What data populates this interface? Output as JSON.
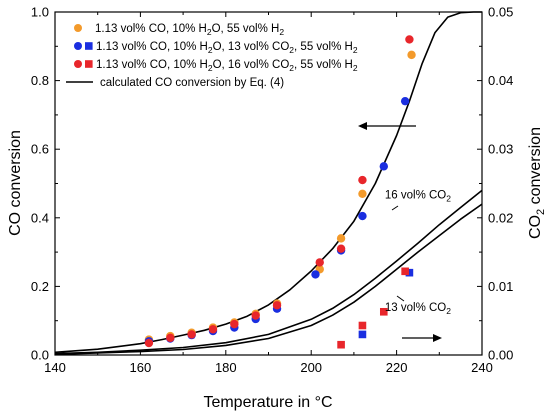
{
  "chart_data": {
    "type": "scatter",
    "xlabel": "Temperature in °C",
    "ylabel_left": "CO conversion",
    "ylabel_right_base": "CO",
    "ylabel_right_sub": "2",
    "ylabel_right_tail": " conversion",
    "xlim": [
      140,
      240
    ],
    "ylim_left": [
      0,
      1.0
    ],
    "ylim_right": [
      0,
      0.05
    ],
    "x_ticks": [
      "140",
      "160",
      "180",
      "200",
      "220",
      "240"
    ],
    "y_left_ticks": [
      "0.0",
      "0.2",
      "0.4",
      "0.6",
      "0.8",
      "1.0"
    ],
    "y_right_ticks": [
      "0.00",
      "0.01",
      "0.02",
      "0.03",
      "0.04",
      "0.05"
    ],
    "grid": false,
    "legend_position": "top-left",
    "legend": [
      {
        "marker": "circle",
        "color": "#f39a2b",
        "parts": [
          [
            "1.13 vol% CO, 10% H",
            ""
          ],
          [
            "2",
            "sub"
          ],
          [
            "O, 55 vol% H",
            ""
          ],
          [
            "2",
            "sub"
          ]
        ]
      },
      {
        "marker": "circle-square",
        "color": "#1a2ee0",
        "parts": [
          [
            "1.13 vol% CO, 10% H",
            ""
          ],
          [
            "2",
            "sub"
          ],
          [
            "O, 13 vol% CO",
            ""
          ],
          [
            "2",
            "sub"
          ],
          [
            ", 55 vol% H",
            ""
          ],
          [
            "2",
            "sub"
          ]
        ]
      },
      {
        "marker": "circle-square",
        "color": "#e8262b",
        "parts": [
          [
            "1.13 vol% CO, 10% H",
            ""
          ],
          [
            "2",
            "sub"
          ],
          [
            "O, 16 vol% CO",
            ""
          ],
          [
            "2",
            "sub"
          ],
          [
            ", 55 vol% H",
            ""
          ],
          [
            "2",
            "sub"
          ]
        ]
      },
      {
        "marker": "line",
        "color": "#000000",
        "parts": [
          [
            "calculated CO conversion by Eq. (4)",
            ""
          ]
        ]
      }
    ],
    "annotations": [
      {
        "parts": [
          [
            "16 vol% CO",
            ""
          ],
          [
            "2",
            "sub"
          ]
        ],
        "x": 225,
        "y_right": 0.0228
      },
      {
        "parts": [
          [
            "13 vol% CO",
            ""
          ],
          [
            "2",
            "sub"
          ]
        ],
        "x": 225,
        "y_right": 0.0064
      }
    ],
    "series": [
      {
        "axis": "left",
        "marker": "circle",
        "color": "#f39a2b",
        "x": [
          162,
          167,
          172,
          177,
          182,
          187,
          192,
          202,
          207,
          212,
          223.5
        ],
        "y": [
          0.045,
          0.055,
          0.065,
          0.08,
          0.095,
          0.12,
          0.15,
          0.25,
          0.34,
          0.47,
          0.875
        ]
      },
      {
        "axis": "left",
        "marker": "circle",
        "color": "#1a2ee0",
        "x": [
          162,
          167,
          172,
          177,
          182,
          187,
          192,
          201,
          207,
          212,
          217,
          222
        ],
        "y": [
          0.04,
          0.048,
          0.058,
          0.07,
          0.08,
          0.105,
          0.135,
          0.235,
          0.305,
          0.405,
          0.55,
          0.74
        ]
      },
      {
        "axis": "left",
        "marker": "circle",
        "color": "#e8262b",
        "x": [
          162,
          167,
          172,
          177,
          182,
          187,
          192,
          202,
          207,
          212,
          223
        ],
        "y": [
          0.035,
          0.05,
          0.06,
          0.075,
          0.09,
          0.115,
          0.145,
          0.27,
          0.31,
          0.51,
          0.92
        ]
      },
      {
        "axis": "right",
        "marker": "square",
        "color": "#1a2ee0",
        "x": [
          212,
          223
        ],
        "y": [
          0.003,
          0.012
        ]
      },
      {
        "axis": "right",
        "marker": "square",
        "color": "#e8262b",
        "x": [
          207,
          212,
          217,
          222
        ],
        "y": [
          0.0015,
          0.0043,
          0.0063,
          0.0122
        ]
      }
    ],
    "curves": [
      {
        "axis": "left",
        "name": "calculated CO conversion by Eq. (4)",
        "x": [
          140,
          150,
          160,
          165,
          170,
          175,
          180,
          185,
          190,
          195,
          200,
          205,
          210,
          215,
          220,
          223,
          226,
          229,
          232,
          235,
          238,
          240
        ],
        "y": [
          0.008,
          0.017,
          0.033,
          0.045,
          0.058,
          0.072,
          0.09,
          0.113,
          0.146,
          0.19,
          0.245,
          0.31,
          0.39,
          0.5,
          0.64,
          0.74,
          0.85,
          0.94,
          0.985,
          0.998,
          1.0,
          1.0
        ]
      },
      {
        "axis": "right",
        "name": "16 vol% CO2",
        "x": [
          140,
          150,
          160,
          170,
          180,
          190,
          200,
          205,
          210,
          215,
          220,
          225,
          230,
          235,
          240
        ],
        "y": [
          0.0002,
          0.0004,
          0.0007,
          0.0011,
          0.0018,
          0.003,
          0.0052,
          0.0068,
          0.0088,
          0.0112,
          0.0137,
          0.0163,
          0.019,
          0.0215,
          0.024
        ]
      },
      {
        "axis": "right",
        "name": "13 vol% CO2",
        "x": [
          140,
          150,
          160,
          170,
          180,
          190,
          200,
          205,
          210,
          215,
          220,
          225,
          230,
          235,
          240
        ],
        "y": [
          0.0001,
          0.0003,
          0.0005,
          0.0008,
          0.0014,
          0.0024,
          0.0043,
          0.0058,
          0.0077,
          0.01,
          0.0125,
          0.015,
          0.0174,
          0.0198,
          0.022
        ]
      }
    ]
  }
}
